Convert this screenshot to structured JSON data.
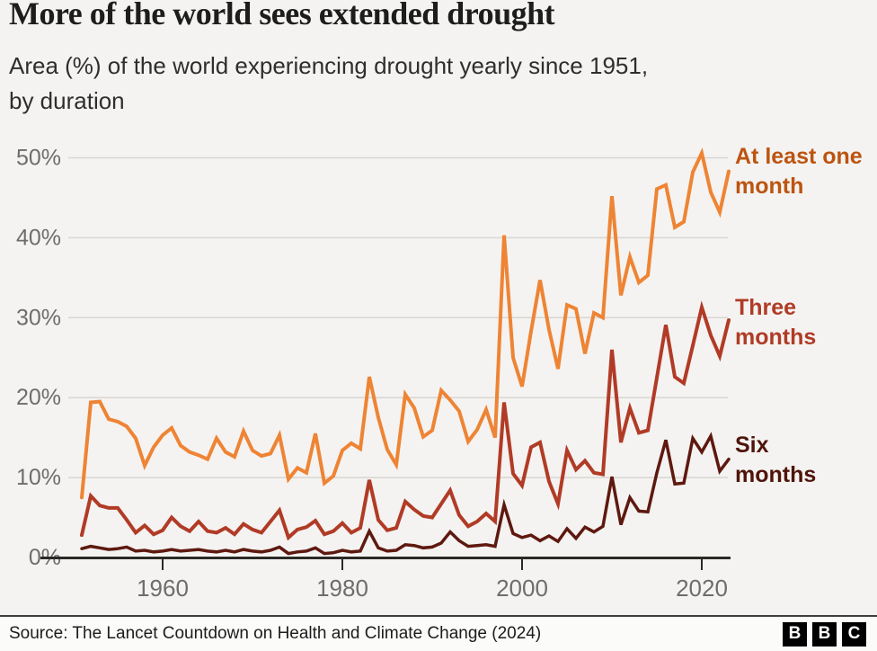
{
  "header": {
    "title": "More of the world sees extended drought",
    "subtitle_line1": "Area (%) of the world experiencing drought yearly since 1951,",
    "subtitle_line2": "by duration"
  },
  "chart_data": {
    "type": "line",
    "title": "More of the world sees extended drought",
    "subtitle": "Area (%) of the world experiencing drought yearly since 1951, by duration",
    "ylim": [
      0,
      52
    ],
    "grid": "horizontal",
    "legend_position": "right-of-line-ends",
    "colors": {
      "background": "#f4f3f1",
      "gridline": "#d7d6d3",
      "axis_line": "#2b2a27",
      "tick_label": "#6d6d6d"
    },
    "y_axis": {
      "ticks": [
        {
          "value": 0,
          "label": "0%"
        },
        {
          "value": 10,
          "label": "10%"
        },
        {
          "value": 20,
          "label": "20%"
        },
        {
          "value": 30,
          "label": "30%"
        },
        {
          "value": 40,
          "label": "40%"
        },
        {
          "value": 50,
          "label": "50%"
        }
      ]
    },
    "x_axis": {
      "ticks": [
        {
          "year": 1960,
          "label": "1960"
        },
        {
          "year": 1980,
          "label": "1980"
        },
        {
          "year": 2000,
          "label": "2000"
        },
        {
          "year": 2020,
          "label": "2020"
        }
      ]
    },
    "years": [
      1951,
      1952,
      1953,
      1954,
      1955,
      1956,
      1957,
      1958,
      1959,
      1960,
      1961,
      1962,
      1963,
      1964,
      1965,
      1966,
      1967,
      1968,
      1969,
      1970,
      1971,
      1972,
      1973,
      1974,
      1975,
      1976,
      1977,
      1978,
      1979,
      1980,
      1981,
      1982,
      1983,
      1984,
      1985,
      1986,
      1987,
      1988,
      1989,
      1990,
      1991,
      1992,
      1993,
      1994,
      1995,
      1996,
      1997,
      1998,
      1999,
      2000,
      2001,
      2002,
      2003,
      2004,
      2005,
      2006,
      2007,
      2008,
      2009,
      2010,
      2011,
      2012,
      2013,
      2014,
      2015,
      2016,
      2017,
      2018,
      2019,
      2020,
      2021,
      2022,
      2023
    ],
    "series": [
      {
        "name": "At least one month",
        "label": "At least one month",
        "color": "#ee8434",
        "label_color": "#bc5410",
        "stroke_width": 4,
        "values": [
          7.5,
          19.4,
          19.5,
          17.3,
          17.0,
          16.4,
          14.9,
          11.5,
          13.8,
          15.3,
          16.2,
          14.0,
          13.2,
          12.8,
          12.3,
          14.9,
          13.2,
          12.6,
          15.8,
          13.4,
          12.7,
          13.0,
          15.3,
          9.8,
          11.2,
          10.6,
          15.5,
          9.3,
          10.2,
          13.4,
          14.3,
          13.6,
          22.6,
          17.5,
          13.5,
          11.6,
          20.4,
          18.7,
          15.1,
          15.9,
          20.9,
          19.7,
          18.3,
          14.5,
          16.0,
          18.5,
          15.0,
          40.3,
          25.0,
          21.4,
          28.3,
          34.7,
          28.5,
          23.6,
          31.6,
          31.1,
          25.5,
          30.6,
          30.0,
          45.2,
          32.8,
          37.6,
          34.4,
          35.3,
          46.1,
          46.6,
          41.3,
          42.0,
          48.2,
          50.6,
          45.7,
          43.2,
          48.3
        ]
      },
      {
        "name": "Three months",
        "label": "Three months",
        "color": "#b13b26",
        "label_color": "#b03b25",
        "stroke_width": 4,
        "values": [
          2.8,
          7.7,
          6.5,
          6.2,
          6.2,
          4.7,
          3.1,
          4.0,
          2.9,
          3.4,
          5.0,
          3.9,
          3.3,
          4.5,
          3.3,
          3.1,
          3.7,
          2.9,
          4.2,
          3.5,
          3.1,
          4.5,
          5.9,
          2.5,
          3.5,
          3.8,
          4.6,
          2.9,
          3.3,
          4.3,
          3.1,
          3.7,
          9.7,
          4.7,
          3.4,
          3.7,
          7.0,
          6.0,
          5.2,
          5.0,
          6.7,
          8.4,
          5.3,
          3.9,
          4.5,
          5.5,
          4.5,
          19.4,
          10.5,
          9.0,
          13.8,
          14.4,
          9.5,
          6.7,
          13.4,
          11.0,
          12.1,
          10.6,
          10.4,
          26.0,
          14.4,
          18.7,
          15.6,
          15.9,
          22.5,
          29.1,
          22.6,
          21.8,
          26.5,
          31.3,
          27.8,
          25.2,
          29.7
        ]
      },
      {
        "name": "Six months",
        "label": "Six months",
        "color": "#5e190f",
        "label_color": "#4f150b",
        "stroke_width": 3.5,
        "values": [
          1.1,
          1.4,
          1.2,
          1.0,
          1.1,
          1.3,
          0.8,
          0.9,
          0.7,
          0.8,
          1.0,
          0.8,
          0.9,
          1.0,
          0.8,
          0.7,
          0.9,
          0.7,
          1.0,
          0.8,
          0.7,
          0.9,
          1.3,
          0.5,
          0.7,
          0.8,
          1.2,
          0.5,
          0.6,
          0.9,
          0.7,
          0.8,
          3.3,
          1.2,
          0.8,
          0.9,
          1.6,
          1.5,
          1.2,
          1.3,
          1.8,
          3.2,
          2.1,
          1.4,
          1.5,
          1.6,
          1.4,
          6.6,
          3.0,
          2.5,
          2.8,
          2.1,
          2.7,
          2.0,
          3.6,
          2.4,
          3.8,
          3.2,
          3.9,
          10.1,
          4.1,
          7.5,
          5.8,
          5.7,
          10.6,
          14.7,
          9.2,
          9.3,
          14.9,
          13.2,
          15.2,
          10.8,
          12.3
        ]
      }
    ]
  },
  "footer": {
    "source": "Source: The Lancet Countdown on Health and Climate Change (2024)",
    "logo_letters": [
      "B",
      "B",
      "C"
    ]
  }
}
